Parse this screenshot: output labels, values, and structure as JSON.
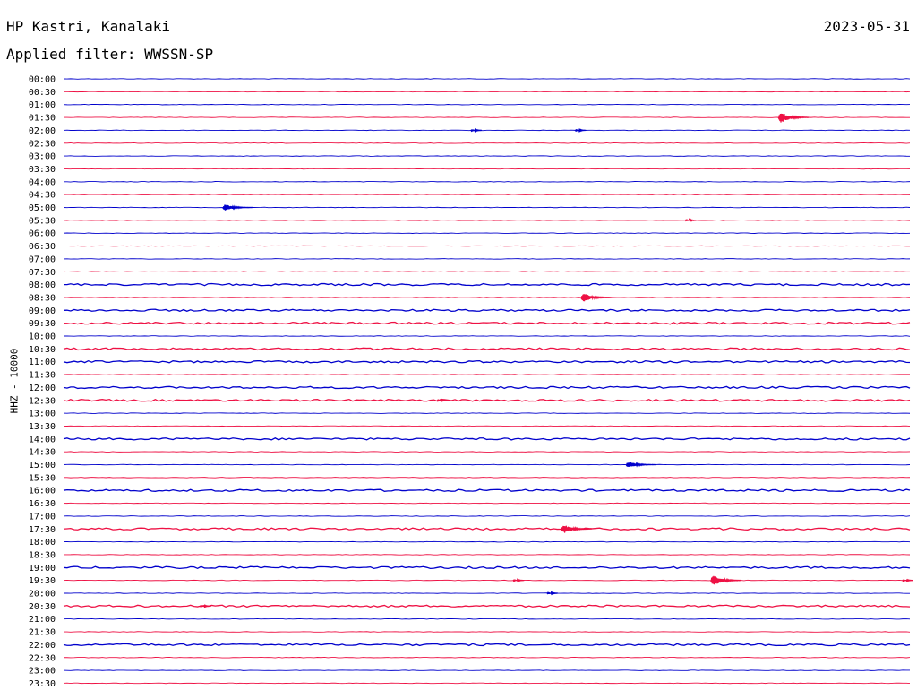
{
  "header": {
    "station": "HP Kastri, Kanalaki",
    "date": "2023-05-31",
    "filter_label": "Applied filter: WWSSN-SP"
  },
  "chart_data": {
    "type": "line",
    "title": "HP Kastri, Kanalaki",
    "subtitle": "Applied filter: WWSSN-SP",
    "date": "2023-05-31",
    "ylabel": "HHZ - 10000",
    "row_labels": [
      "00:00",
      "00:30",
      "01:00",
      "01:30",
      "02:00",
      "02:30",
      "03:00",
      "03:30",
      "04:00",
      "04:30",
      "05:00",
      "05:30",
      "06:00",
      "06:30",
      "07:00",
      "07:30",
      "08:00",
      "08:30",
      "09:00",
      "09:30",
      "10:00",
      "10:30",
      "11:00",
      "11:30",
      "12:00",
      "12:30",
      "13:00",
      "13:30",
      "14:00",
      "14:30",
      "15:00",
      "15:30",
      "16:00",
      "16:30",
      "17:00",
      "17:30",
      "18:00",
      "18:30",
      "19:00",
      "19:30",
      "20:00",
      "20:30",
      "21:00",
      "21:30",
      "22:00",
      "22:30",
      "23:00",
      "23:30"
    ],
    "x_range_minutes": [
      0,
      30
    ],
    "series_colors": [
      "#0000cc",
      "#ee1144"
    ],
    "events": [
      {
        "row": "01:30",
        "minute": 25.5,
        "amplitude": 9
      },
      {
        "row": "02:00",
        "minute": 14.5,
        "amplitude": 2
      },
      {
        "row": "02:00",
        "minute": 18.2,
        "amplitude": 2
      },
      {
        "row": "05:00",
        "minute": 5.8,
        "amplitude": 5
      },
      {
        "row": "08:30",
        "minute": 18.5,
        "amplitude": 7
      },
      {
        "row": "15:00",
        "minute": 20.1,
        "amplitude": 5
      },
      {
        "row": "17:30",
        "minute": 17.8,
        "amplitude": 7
      },
      {
        "row": "19:30",
        "minute": 23.1,
        "amplitude": 9
      },
      {
        "row": "19:30",
        "minute": 16.0,
        "amplitude": 2
      },
      {
        "row": "19:30",
        "minute": 29.8,
        "amplitude": 2
      },
      {
        "row": "20:30",
        "minute": 4.9,
        "amplitude": 2
      },
      {
        "row": "05:30",
        "minute": 22.1,
        "amplitude": 2
      },
      {
        "row": "12:30",
        "minute": 13.3,
        "amplitude": 2
      },
      {
        "row": "20:00",
        "minute": 17.2,
        "amplitude": 2
      }
    ],
    "noisy_rows": [
      "08:00",
      "09:00",
      "09:30",
      "10:30",
      "11:00",
      "12:00",
      "12:30",
      "14:00",
      "16:00",
      "17:30",
      "19:00",
      "20:30",
      "22:00"
    ]
  }
}
